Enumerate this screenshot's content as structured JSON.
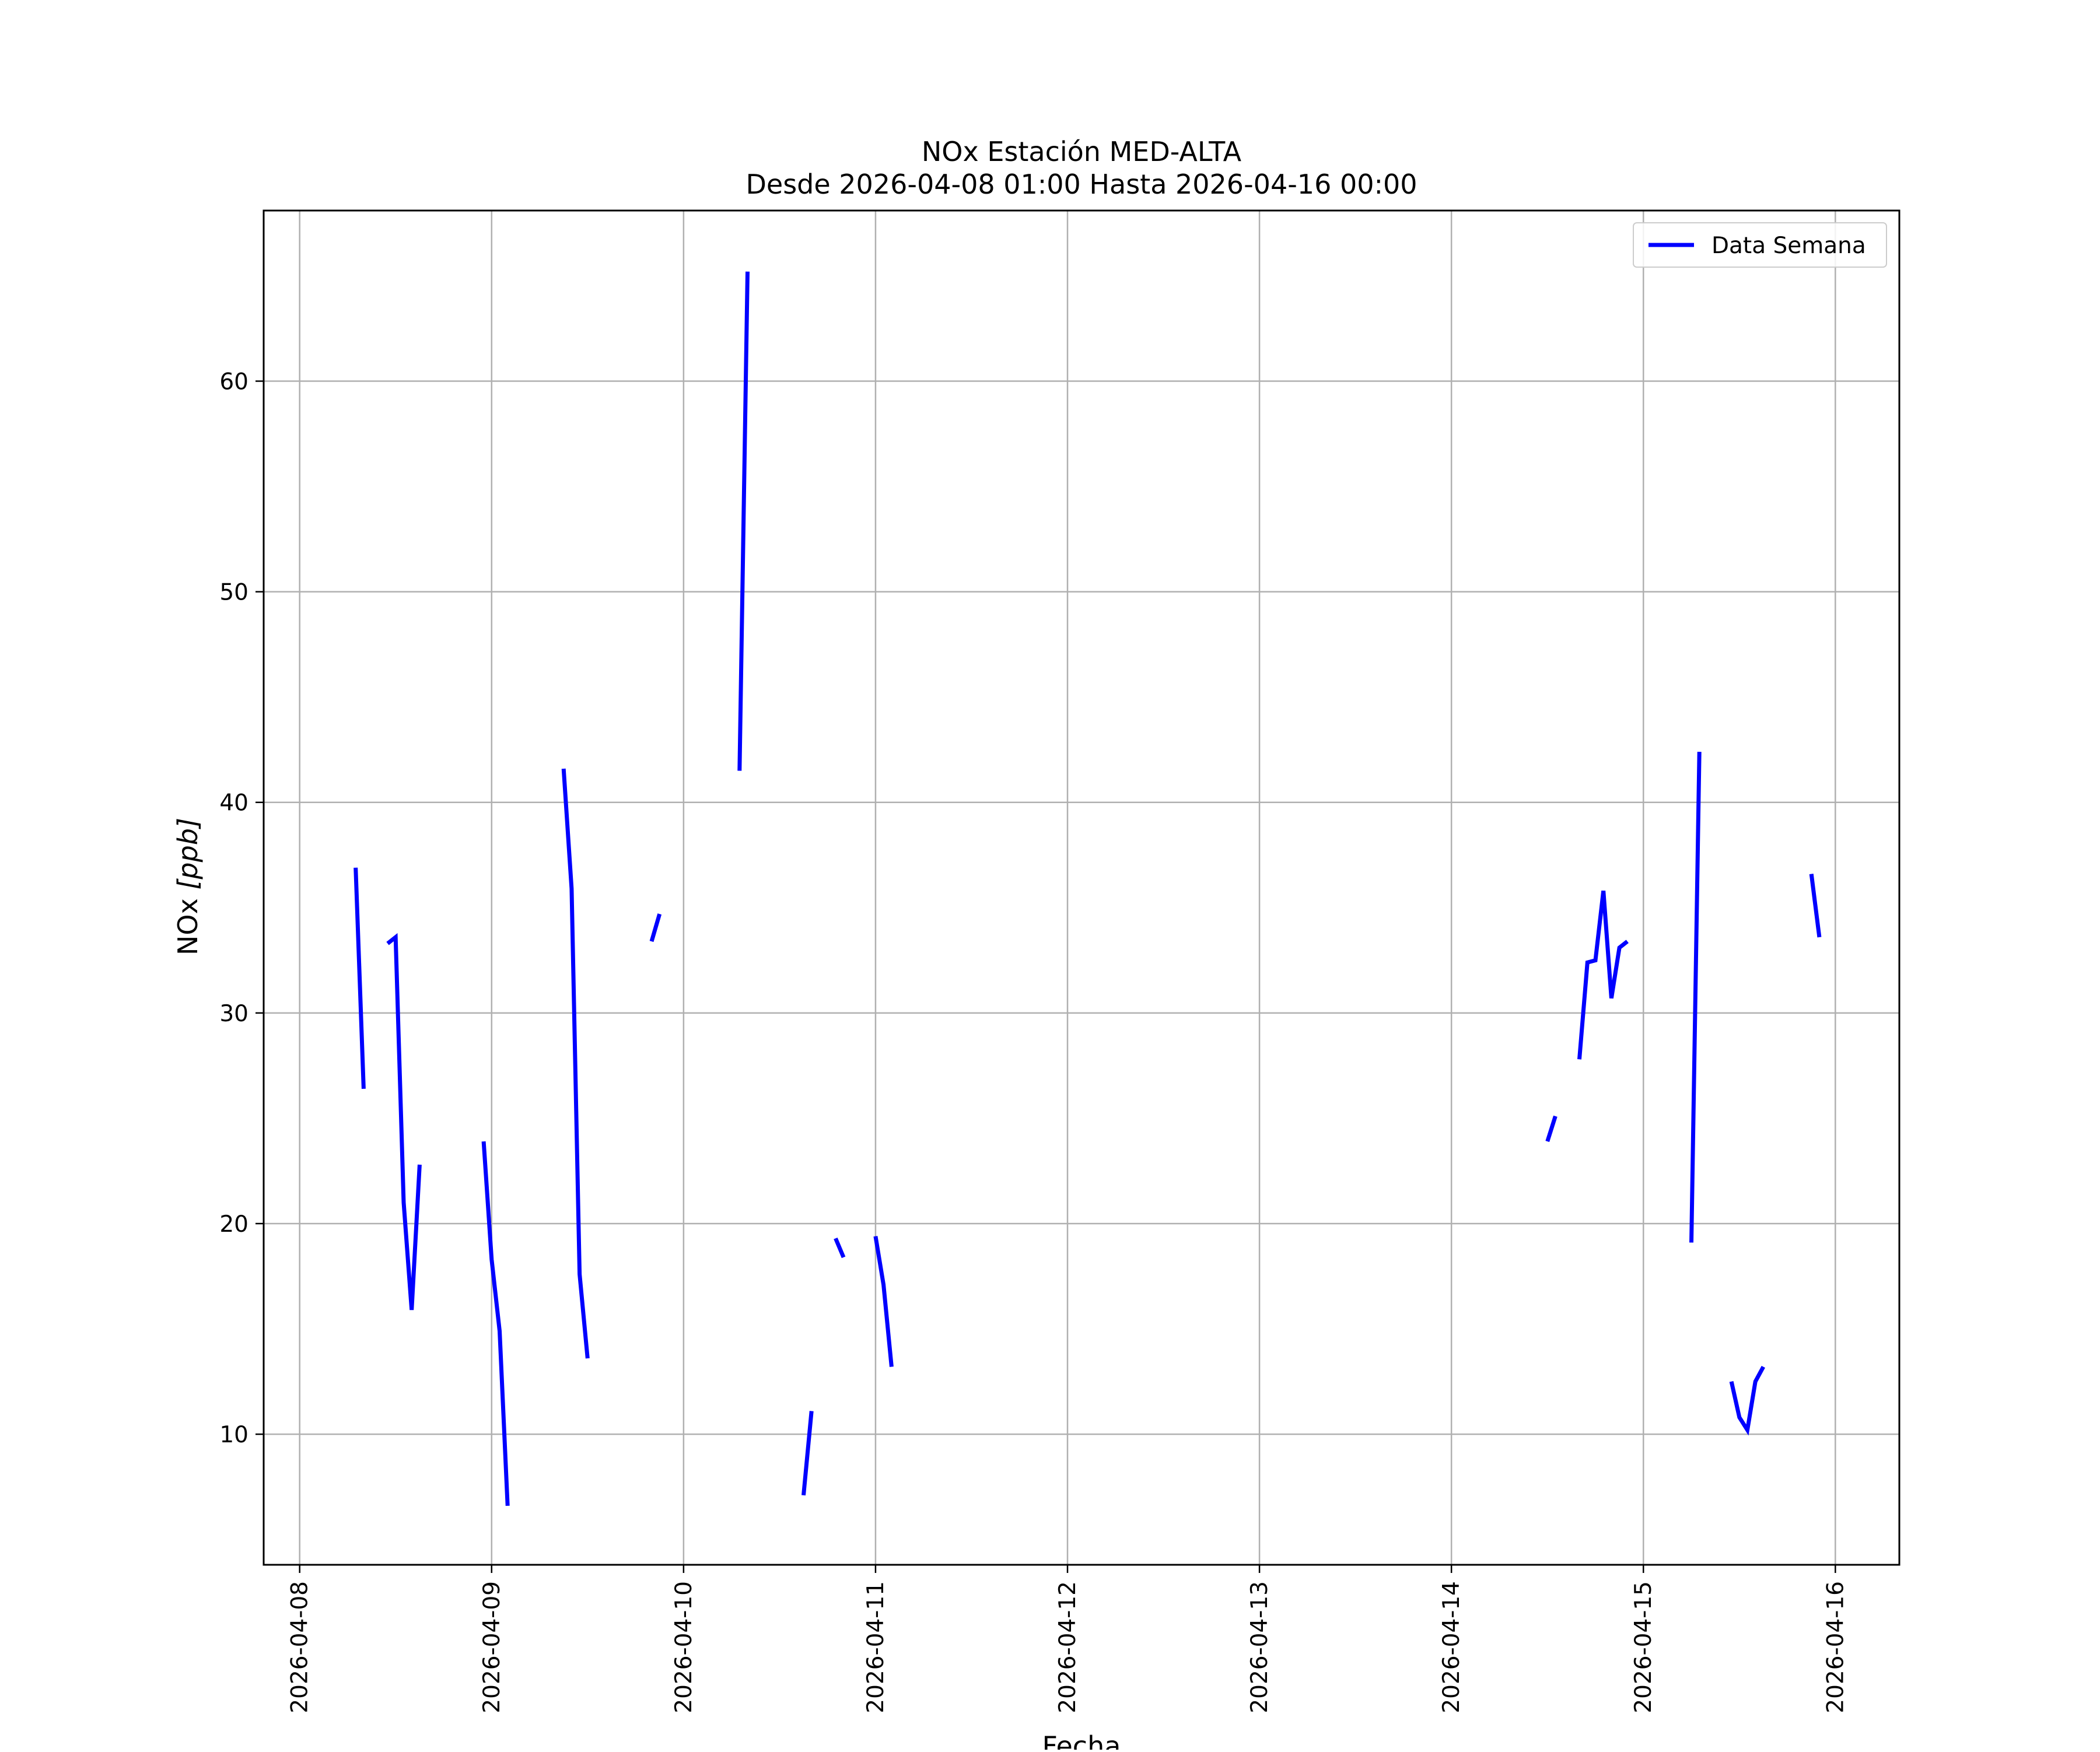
{
  "chart_data": {
    "type": "line",
    "title": "NOx Estación MED-ALTA",
    "subtitle": "Desde 2026-04-08 01:00 Hasta 2026-04-16 00:00",
    "xlabel": "Fecha",
    "ylabel_main": "NOx ",
    "ylabel_unit": "[ppb]",
    "x_type": "date",
    "xlim": [
      "2026-04-07 19:30",
      "2026-04-16 08:00"
    ],
    "ylim": [
      3.8,
      68.1
    ],
    "grid": true,
    "legend_position": "top-right",
    "x_ticks": [
      "2026-04-08",
      "2026-04-09",
      "2026-04-10",
      "2026-04-11",
      "2026-04-12",
      "2026-04-13",
      "2026-04-14",
      "2026-04-15",
      "2026-04-16"
    ],
    "y_ticks": [
      10,
      20,
      30,
      40,
      50,
      60
    ],
    "series": [
      {
        "name": "Data Semana",
        "color": "#0000ff",
        "segments": [
          [
            [
              "2026-04-08 07:00",
              36.9
            ],
            [
              "2026-04-08 08:00",
              26.4
            ]
          ],
          [
            [
              "2026-04-08 11:00",
              33.3
            ],
            [
              "2026-04-08 12:00",
              33.6
            ],
            [
              "2026-04-08 13:00",
              21.0
            ],
            [
              "2026-04-08 14:00",
              15.9
            ],
            [
              "2026-04-08 15:00",
              22.8
            ]
          ],
          [
            [
              "2026-04-08 23:00",
              23.9
            ],
            [
              "2026-04-09 00:00",
              18.3
            ],
            [
              "2026-04-09 01:00",
              14.9
            ],
            [
              "2026-04-09 02:00",
              6.6
            ]
          ],
          [
            [
              "2026-04-09 09:00",
              41.6
            ],
            [
              "2026-04-09 10:00",
              35.9
            ],
            [
              "2026-04-09 11:00",
              17.6
            ],
            [
              "2026-04-09 12:00",
              13.6
            ]
          ],
          [
            [
              "2026-04-09 20:00",
              33.4
            ],
            [
              "2026-04-09 21:00",
              34.7
            ]
          ],
          [
            [
              "2026-04-10 07:00",
              41.5
            ],
            [
              "2026-04-10 08:00",
              65.2
            ]
          ],
          [
            [
              "2026-04-10 15:00",
              7.1
            ],
            [
              "2026-04-10 16:00",
              11.1
            ]
          ],
          [
            [
              "2026-04-10 19:00",
              19.3
            ],
            [
              "2026-04-10 20:00",
              18.4
            ]
          ],
          [
            [
              "2026-04-11 00:00",
              19.4
            ],
            [
              "2026-04-11 01:00",
              17.1
            ],
            [
              "2026-04-11 02:00",
              13.2
            ]
          ],
          [
            [
              "2026-04-14 12:00",
              23.9
            ],
            [
              "2026-04-14 13:00",
              25.1
            ]
          ],
          [
            [
              "2026-04-14 16:00",
              27.8
            ],
            [
              "2026-04-14 17:00",
              32.4
            ],
            [
              "2026-04-14 18:00",
              32.5
            ],
            [
              "2026-04-14 19:00",
              35.8
            ],
            [
              "2026-04-14 20:00",
              30.7
            ],
            [
              "2026-04-14 21:00",
              33.1
            ],
            [
              "2026-04-14 22:00",
              33.4
            ]
          ],
          [
            [
              "2026-04-15 06:00",
              19.1
            ],
            [
              "2026-04-15 07:00",
              42.4
            ]
          ],
          [
            [
              "2026-04-15 11:00",
              12.5
            ],
            [
              "2026-04-15 12:00",
              10.8
            ],
            [
              "2026-04-15 13:00",
              10.2
            ],
            [
              "2026-04-15 14:00",
              12.5
            ],
            [
              "2026-04-15 15:00",
              13.2
            ]
          ],
          [
            [
              "2026-04-15 21:00",
              36.6
            ],
            [
              "2026-04-15 22:00",
              33.6
            ]
          ]
        ]
      }
    ],
    "legend": {
      "label": "Data Semana"
    }
  }
}
